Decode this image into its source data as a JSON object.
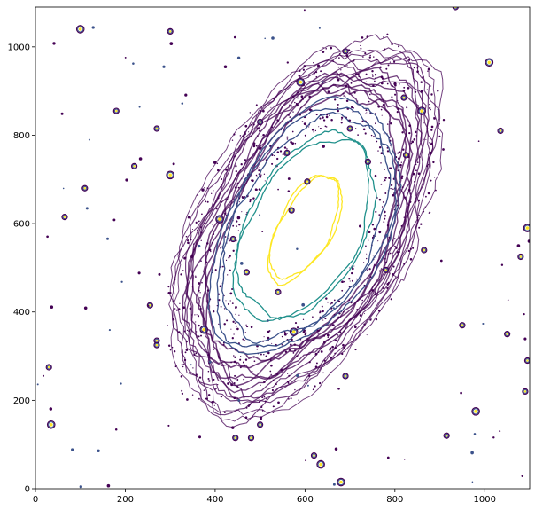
{
  "chart_data": {
    "type": "contour",
    "title": "",
    "xlabel": "",
    "ylabel": "",
    "xlim": [
      0,
      1100
    ],
    "ylim": [
      0,
      1090
    ],
    "x_ticks": [
      0,
      200,
      400,
      600,
      800,
      1000
    ],
    "y_ticks": [
      0,
      200,
      400,
      600,
      800,
      1000
    ],
    "grid": false,
    "colormap": "viridis",
    "levels": [
      {
        "level": 1,
        "color": "#440154"
      },
      {
        "level": 2,
        "color": "#3b528b"
      },
      {
        "level": 3,
        "color": "#21918c"
      },
      {
        "level": 4,
        "color": "#fde725"
      }
    ],
    "galaxy": {
      "center": [
        600,
        590
      ],
      "position_angle_deg": 62,
      "outer_radii": [
        [
          60,
          135
        ],
        [
          130,
          230
        ],
        [
          175,
          310
        ],
        [
          235,
          460
        ]
      ]
    },
    "point_sources": [
      [
        100,
        1040
      ],
      [
        300,
        1035
      ],
      [
        690,
        990
      ],
      [
        935,
        1090
      ],
      [
        1010,
        965
      ],
      [
        180,
        855
      ],
      [
        270,
        815
      ],
      [
        820,
        885
      ],
      [
        860,
        855
      ],
      [
        1035,
        810
      ],
      [
        825,
        755
      ],
      [
        700,
        815
      ],
      [
        300,
        710
      ],
      [
        110,
        680
      ],
      [
        220,
        730
      ],
      [
        65,
        615
      ],
      [
        1095,
        590
      ],
      [
        1080,
        525
      ],
      [
        865,
        540
      ],
      [
        780,
        495
      ],
      [
        575,
        355
      ],
      [
        950,
        370
      ],
      [
        270,
        335
      ],
      [
        270,
        325
      ],
      [
        375,
        360
      ],
      [
        1050,
        350
      ],
      [
        1095,
        290
      ],
      [
        1090,
        220
      ],
      [
        35,
        145
      ],
      [
        500,
        145
      ],
      [
        480,
        115
      ],
      [
        620,
        75
      ],
      [
        680,
        15
      ],
      [
        30,
        275
      ],
      [
        255,
        415
      ],
      [
        445,
        115
      ],
      [
        635,
        55
      ],
      [
        560,
        760
      ],
      [
        605,
        695
      ],
      [
        690,
        255
      ],
      [
        980,
        175
      ],
      [
        915,
        120
      ],
      [
        570,
        630
      ],
      [
        540,
        445
      ],
      [
        410,
        610
      ],
      [
        440,
        565
      ],
      [
        470,
        490
      ],
      [
        740,
        740
      ],
      [
        590,
        920
      ],
      [
        500,
        830
      ]
    ]
  }
}
